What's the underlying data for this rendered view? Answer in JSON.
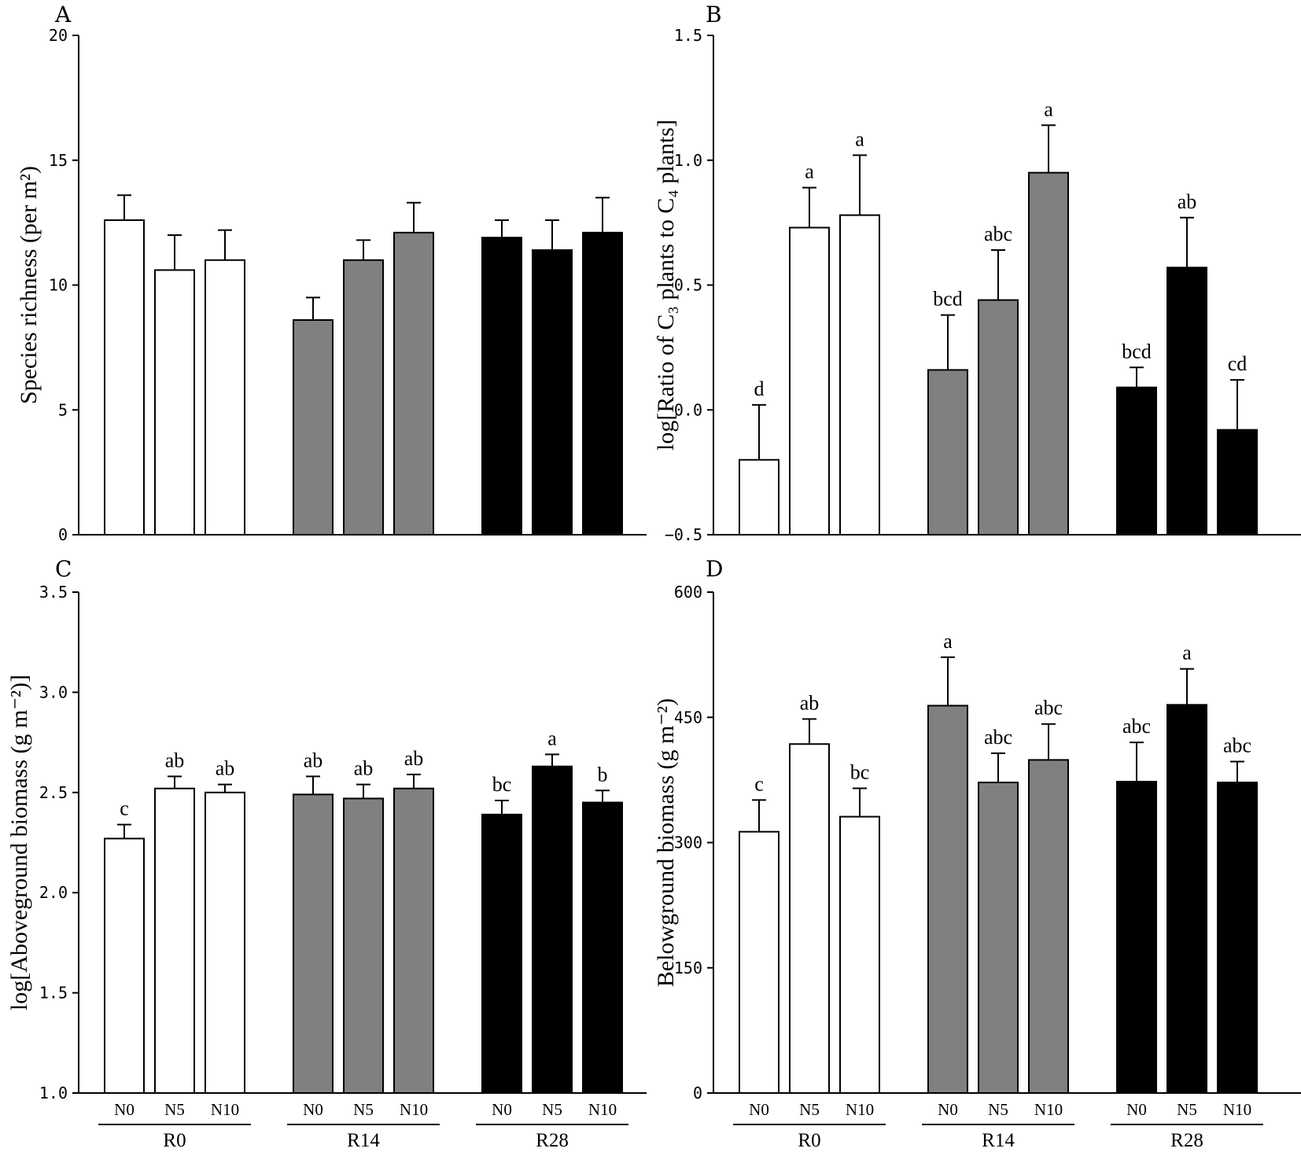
{
  "chart_data": [
    {
      "panel": "A",
      "type": "bar",
      "ylabel": "Species richness (per m²)",
      "ylim": [
        0,
        20
      ],
      "yticks": [
        0,
        5,
        10,
        15,
        20
      ],
      "tick_labels": [
        "0",
        "5",
        "10",
        "15",
        "20"
      ],
      "groups": [
        "R0",
        "R14",
        "R28"
      ],
      "categories": [
        "N0",
        "N5",
        "N10"
      ],
      "group_colors": [
        "#ffffff",
        "#808080",
        "#000000"
      ],
      "values": [
        [
          12.6,
          10.6,
          11.0
        ],
        [
          8.6,
          11.0,
          12.1
        ],
        [
          11.9,
          11.4,
          12.1
        ]
      ],
      "errors": [
        [
          1.0,
          1.4,
          1.2
        ],
        [
          0.9,
          0.8,
          1.2
        ],
        [
          0.7,
          1.2,
          1.4
        ]
      ],
      "letters": [
        [
          "",
          "",
          ""
        ],
        [
          "",
          "",
          ""
        ],
        [
          "",
          "",
          ""
        ]
      ],
      "show_x_labels": false
    },
    {
      "panel": "B",
      "type": "bar",
      "ylabel": "log[Ratio of C₃ plants to C₄ plants]",
      "ylim": [
        -0.5,
        1.5
      ],
      "yticks": [
        -0.5,
        0.0,
        0.5,
        1.0,
        1.5
      ],
      "tick_labels": [
        "−0.5",
        "0.0",
        "0.5",
        "1.0",
        "1.5"
      ],
      "groups": [
        "R0",
        "R14",
        "R28"
      ],
      "categories": [
        "N0",
        "N5",
        "N10"
      ],
      "group_colors": [
        "#ffffff",
        "#808080",
        "#000000"
      ],
      "values": [
        [
          -0.2,
          0.73,
          0.78
        ],
        [
          0.16,
          0.44,
          0.95
        ],
        [
          0.09,
          0.57,
          -0.08
        ]
      ],
      "errors": [
        [
          0.22,
          0.16,
          0.24
        ],
        [
          0.22,
          0.2,
          0.19
        ],
        [
          0.08,
          0.2,
          0.2
        ]
      ],
      "letters": [
        [
          "d",
          "a",
          "a"
        ],
        [
          "bcd",
          "abc",
          "a"
        ],
        [
          "bcd",
          "ab",
          "cd"
        ]
      ],
      "show_x_labels": false
    },
    {
      "panel": "C",
      "type": "bar",
      "ylabel": "log[Aboveground biomass (g m⁻²)]",
      "ylim": [
        1.0,
        3.5
      ],
      "yticks": [
        1.0,
        1.5,
        2.0,
        2.5,
        3.0,
        3.5
      ],
      "tick_labels": [
        "1.0",
        "1.5",
        "2.0",
        "2.5",
        "3.0",
        "3.5"
      ],
      "groups": [
        "R0",
        "R14",
        "R28"
      ],
      "categories": [
        "N0",
        "N5",
        "N10"
      ],
      "group_colors": [
        "#ffffff",
        "#808080",
        "#000000"
      ],
      "values": [
        [
          2.27,
          2.52,
          2.5
        ],
        [
          2.49,
          2.47,
          2.52
        ],
        [
          2.39,
          2.63,
          2.45
        ]
      ],
      "errors": [
        [
          0.07,
          0.06,
          0.04
        ],
        [
          0.09,
          0.07,
          0.07
        ],
        [
          0.07,
          0.06,
          0.06
        ]
      ],
      "letters": [
        [
          "c",
          "ab",
          "ab"
        ],
        [
          "ab",
          "ab",
          "ab"
        ],
        [
          "bc",
          "a",
          "b"
        ]
      ],
      "show_x_labels": true
    },
    {
      "panel": "D",
      "type": "bar",
      "ylabel": "Belowground biomass (g m⁻²)",
      "ylim": [
        0,
        600
      ],
      "yticks": [
        0,
        150,
        300,
        450,
        600
      ],
      "tick_labels": [
        "0",
        "150",
        "300",
        "450",
        "600"
      ],
      "groups": [
        "R0",
        "R14",
        "R28"
      ],
      "categories": [
        "N0",
        "N5",
        "N10"
      ],
      "group_colors": [
        "#ffffff",
        "#808080",
        "#000000"
      ],
      "values": [
        [
          313,
          418,
          331
        ],
        [
          464,
          372,
          399
        ],
        [
          373,
          465,
          372
        ]
      ],
      "errors": [
        [
          38,
          30,
          34
        ],
        [
          58,
          35,
          43
        ],
        [
          47,
          43,
          25
        ]
      ],
      "letters": [
        [
          "c",
          "ab",
          "bc"
        ],
        [
          "a",
          "abc",
          "abc"
        ],
        [
          "abc",
          "a",
          "abc"
        ]
      ],
      "show_x_labels": true
    }
  ]
}
